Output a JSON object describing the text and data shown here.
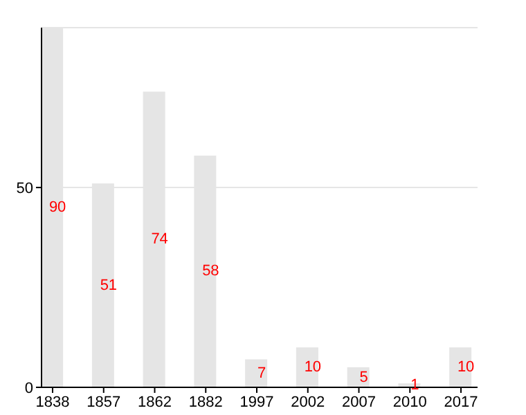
{
  "chart_data": {
    "type": "bar",
    "categories": [
      "1838",
      "1857",
      "1862",
      "1882",
      "1997",
      "2002",
      "2007",
      "2010",
      "2017"
    ],
    "values": [
      90,
      51,
      74,
      58,
      7,
      10,
      5,
      1,
      10
    ],
    "color": "#e5e5e5",
    "ylim": [
      0,
      90
    ],
    "yticks": [
      0,
      50
    ],
    "grid": "y",
    "data_labels": true
  }
}
